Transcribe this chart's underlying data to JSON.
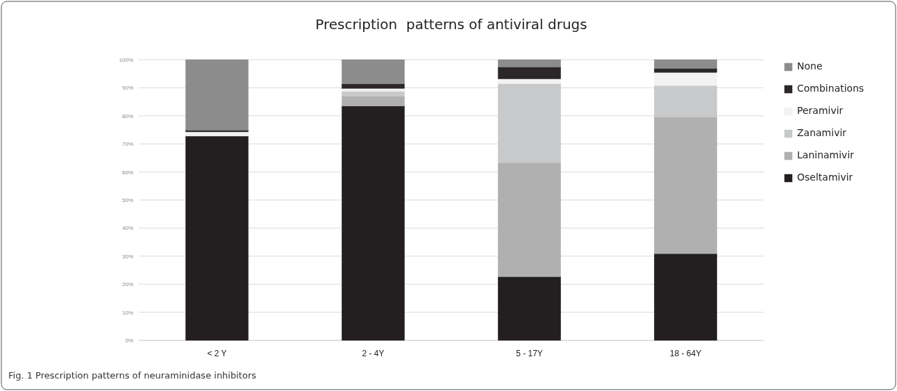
{
  "chart_data": {
    "type": "bar",
    "stacked": true,
    "title": "Prescription  patterns of antiviral drugs",
    "categories": [
      "< 2 Y",
      "2 - 4Y",
      "5 - 17Y",
      "18 - 64Y"
    ],
    "series": [
      {
        "name": "Oseltamivir",
        "color": "#231f20",
        "values": [
          72.8,
          83.5,
          22.7,
          30.9
        ]
      },
      {
        "name": "Laninamivir",
        "color": "#b0b0b0",
        "values": [
          0,
          3.5,
          40.6,
          48.7
        ]
      },
      {
        "name": "Zanamivir",
        "color": "#c8c9ca",
        "values": [
          0,
          1.7,
          28.2,
          11.2
        ]
      },
      {
        "name": "Peramivir",
        "color": "#f2f2f2",
        "values": [
          1.5,
          1.1,
          1.7,
          4.7
        ]
      },
      {
        "name": "Combinations",
        "color": "#2b2728",
        "values": [
          0.6,
          1.6,
          4.2,
          1.4
        ]
      },
      {
        "name": "None",
        "color": "#8c8c8c",
        "values": [
          25.1,
          8.6,
          2.6,
          3.1
        ]
      }
    ],
    "ylim": [
      0,
      100
    ],
    "yticks": [
      {
        "value": 0,
        "label": "0%"
      },
      {
        "value": 10,
        "label": "10%"
      },
      {
        "value": 20,
        "label": "20%"
      },
      {
        "value": 30,
        "label": "30%"
      },
      {
        "value": 40,
        "label": "40%"
      },
      {
        "value": 50,
        "label": "50%"
      },
      {
        "value": 60,
        "label": "60%"
      },
      {
        "value": 70,
        "label": "70%"
      },
      {
        "value": 80,
        "label": "80%"
      },
      {
        "value": 90,
        "label": "90%"
      },
      {
        "value": 100,
        "label": "100%"
      }
    ],
    "grid": "y",
    "legend": "right",
    "annotations": [
      "Fig. 1 Prescription patterns of neuraminidase inhibitors"
    ]
  }
}
